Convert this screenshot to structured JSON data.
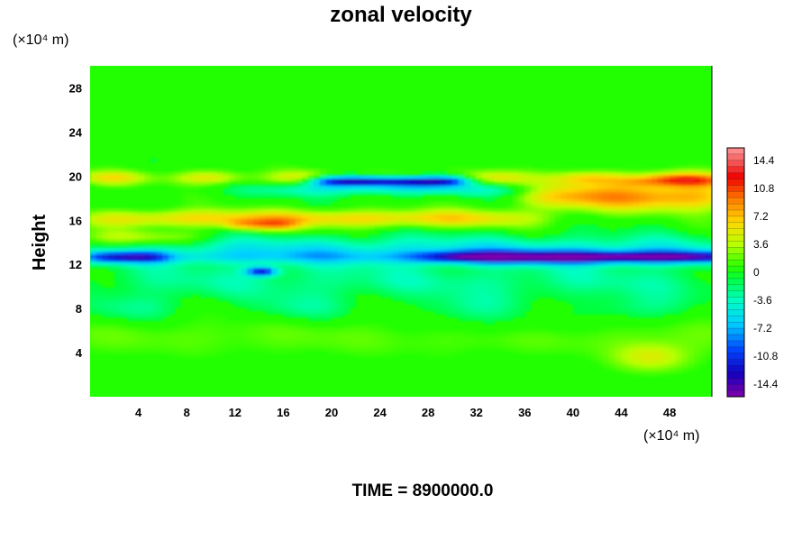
{
  "chart_data": {
    "type": "heatmap",
    "title": "zonal velocity",
    "ylabel": "Height",
    "xlabel": "",
    "x_unit_label": "(×10⁴ m)",
    "y_unit_label": "(×10⁴ m)",
    "xlim": [
      0,
      51.5
    ],
    "ylim": [
      0,
      30
    ],
    "x_ticks": [
      4,
      8,
      12,
      16,
      20,
      24,
      28,
      32,
      36,
      40,
      44,
      48
    ],
    "y_ticks": [
      4,
      8,
      12,
      16,
      20,
      24,
      28
    ],
    "colorbar": {
      "range": [
        -16,
        16
      ],
      "ticks": [
        14.4,
        10.8,
        7.2,
        3.6,
        0,
        -3.6,
        -7.2,
        -10.8,
        -14.4
      ],
      "tick_labels": [
        "14.4",
        "10.8",
        "7.2",
        "3.6",
        "0",
        "-3.6",
        "-7.2",
        "-10.8",
        "-14.4"
      ]
    },
    "features": [
      {
        "kind": "jet",
        "sign": "positive",
        "x": [
          0,
          51.5
        ],
        "y_center": 19.8,
        "peak": 12.6
      },
      {
        "kind": "jet",
        "sign": "positive",
        "x": [
          36,
          51.5
        ],
        "y_center": 18.2,
        "peak": 12.0
      },
      {
        "kind": "jet",
        "sign": "negative",
        "x": [
          18,
          32
        ],
        "y_center": 19.6,
        "peak": -13.5
      },
      {
        "kind": "jet",
        "sign": "positive",
        "x": [
          10,
          34
        ],
        "y_center": 15.8,
        "peak": 7.5
      },
      {
        "kind": "jet",
        "sign": "negative",
        "x": [
          0,
          51.5
        ],
        "y_center": 12.7,
        "peak": -10.5
      },
      {
        "kind": "blob",
        "sign": "positive",
        "x": 46.5,
        "y": 3.5,
        "peak": 4.5
      }
    ],
    "legend": "colorbar-right",
    "grid": false
  },
  "footer": {
    "time_label": "TIME = 8900000.0"
  }
}
